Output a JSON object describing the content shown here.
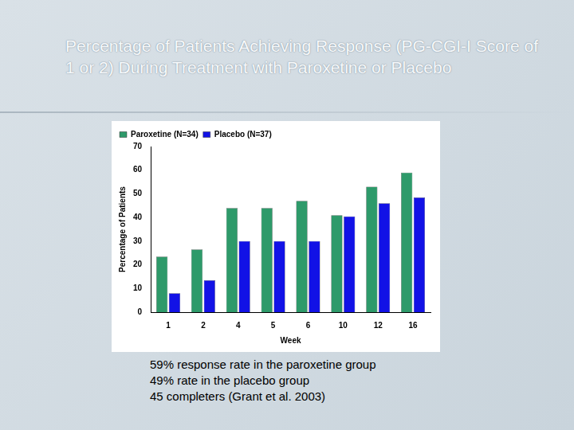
{
  "chart_data": {
    "type": "bar",
    "title": "Percentage of Patients Achieving Response (PG-CGI-I Score of 1 or 2) During Treatment with Paroxetine or Placebo",
    "x_label": "Week",
    "y_label": "Percentage of Patients",
    "categories": [
      "1",
      "2",
      "4",
      "5",
      "6",
      "10",
      "12",
      "16"
    ],
    "series": [
      {
        "name": "Paroxetine (N=34)",
        "color": "#2e9a6a",
        "values": [
          23.5,
          26.5,
          44,
          44,
          47,
          41,
          53,
          59
        ]
      },
      {
        "name": "Placebo (N=37)",
        "color": "#1212e6",
        "values": [
          8,
          13.5,
          30,
          30,
          30,
          40.5,
          46,
          48.5
        ]
      }
    ],
    "ylim": [
      0,
      70
    ],
    "yticks": [
      0,
      10,
      20,
      30,
      40,
      50,
      60,
      70
    ],
    "grid": false,
    "legend": "upper left",
    "annotations": [
      "59% response rate in the paroxetine group",
      "49% rate in the placebo group",
      "45 completers (Grant et al. 2003)"
    ]
  }
}
